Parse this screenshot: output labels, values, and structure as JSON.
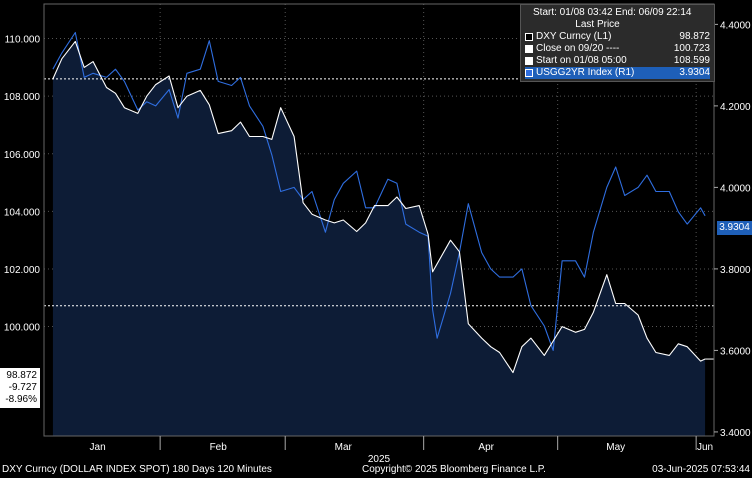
{
  "chart_data": {
    "type": "line",
    "title": "",
    "xlabel": "2025",
    "x_ticks": [
      "Jan",
      "Feb",
      "Mar",
      "Apr",
      "May",
      "Jun"
    ],
    "y_left": {
      "ticks": [
        "110.000",
        "108.000",
        "106.000",
        "104.000",
        "102.000",
        "100.000"
      ],
      "ylim": [
        96.2,
        111.2
      ]
    },
    "y_right": {
      "ticks": [
        "4.4000",
        "4.2000",
        "4.0000",
        "3.8000",
        "3.6000",
        "3.4000"
      ],
      "ylim": [
        3.39,
        4.45
      ]
    },
    "reference_lines": [
      {
        "name": "Close on 09/20",
        "value": 100.723,
        "axis": "left"
      },
      {
        "name": "Start on 01/08 05:00",
        "value": 108.599,
        "axis": "left"
      }
    ],
    "series": [
      {
        "name": "DXY Curncy (L1)",
        "axis": "left",
        "color": "#ffffff",
        "x": [
          "01/08",
          "01/10",
          "01/13",
          "01/15",
          "01/17",
          "01/20",
          "01/22",
          "01/24",
          "01/27",
          "01/29",
          "01/31",
          "02/03",
          "02/05",
          "02/07",
          "02/10",
          "02/12",
          "02/14",
          "02/17",
          "02/19",
          "02/21",
          "02/24",
          "02/26",
          "02/28",
          "03/03",
          "03/05",
          "03/07",
          "03/10",
          "03/12",
          "03/14",
          "03/17",
          "03/19",
          "03/21",
          "03/24",
          "03/26",
          "03/28",
          "03/31",
          "04/02",
          "04/03",
          "04/07",
          "04/09",
          "04/11",
          "04/14",
          "04/16",
          "04/18",
          "04/21",
          "04/23",
          "04/25",
          "04/28",
          "04/30",
          "05/02",
          "05/05",
          "05/07",
          "05/09",
          "05/12",
          "05/14",
          "05/16",
          "05/19",
          "05/21",
          "05/23",
          "05/26",
          "05/28",
          "05/30",
          "06/02",
          "06/03"
        ],
        "values": [
          108.6,
          109.3,
          109.9,
          109.0,
          109.2,
          108.3,
          108.1,
          107.6,
          107.4,
          108.0,
          108.4,
          108.7,
          107.6,
          108.0,
          108.2,
          107.7,
          106.7,
          106.8,
          107.1,
          106.6,
          106.6,
          106.5,
          107.6,
          106.6,
          104.3,
          103.9,
          103.7,
          103.6,
          103.7,
          103.3,
          103.6,
          104.2,
          104.2,
          104.5,
          104.1,
          104.2,
          103.2,
          101.9,
          103.0,
          102.6,
          100.1,
          99.6,
          99.3,
          99.1,
          98.4,
          99.3,
          99.6,
          99.0,
          99.5,
          100.0,
          99.8,
          99.9,
          100.5,
          101.8,
          100.8,
          100.8,
          100.4,
          99.6,
          99.1,
          99.0,
          99.4,
          99.3,
          98.8,
          98.872
        ]
      },
      {
        "name": "USGG2YR Index (R1)",
        "axis": "right",
        "color": "#2f6ee0",
        "x": [
          "01/08",
          "01/10",
          "01/13",
          "01/15",
          "01/17",
          "01/20",
          "01/22",
          "01/24",
          "01/27",
          "01/29",
          "01/31",
          "02/03",
          "02/05",
          "02/07",
          "02/10",
          "02/12",
          "02/14",
          "02/17",
          "02/19",
          "02/21",
          "02/24",
          "02/26",
          "02/28",
          "03/03",
          "03/05",
          "03/07",
          "03/10",
          "03/12",
          "03/14",
          "03/17",
          "03/19",
          "03/21",
          "03/24",
          "03/26",
          "03/28",
          "03/31",
          "04/02",
          "04/03",
          "04/04",
          "04/07",
          "04/09",
          "04/11",
          "04/14",
          "04/16",
          "04/18",
          "04/21",
          "04/23",
          "04/25",
          "04/28",
          "04/30",
          "05/02",
          "05/05",
          "05/07",
          "05/09",
          "05/12",
          "05/14",
          "05/16",
          "05/19",
          "05/21",
          "05/23",
          "05/26",
          "05/28",
          "05/30",
          "06/02",
          "06/03"
        ],
        "values": [
          4.29,
          4.33,
          4.38,
          4.27,
          4.28,
          4.27,
          4.29,
          4.26,
          4.19,
          4.21,
          4.2,
          4.24,
          4.17,
          4.28,
          4.29,
          4.36,
          4.26,
          4.25,
          4.27,
          4.2,
          4.15,
          4.08,
          3.99,
          4.0,
          3.97,
          3.99,
          3.89,
          3.97,
          4.01,
          4.04,
          3.95,
          3.95,
          4.02,
          4.01,
          3.91,
          3.89,
          3.88,
          3.7,
          3.63,
          3.74,
          3.84,
          3.96,
          3.84,
          3.8,
          3.78,
          3.78,
          3.8,
          3.71,
          3.66,
          3.6,
          3.82,
          3.82,
          3.78,
          3.89,
          4.0,
          4.05,
          3.98,
          4.0,
          4.03,
          3.99,
          3.99,
          3.94,
          3.91,
          3.95,
          3.9304
        ]
      }
    ],
    "legend": {
      "header": "Start: 01/08 03:42 End: 06/09 22:14",
      "subheader": "Last Price",
      "placement": "top-right",
      "rows": [
        {
          "label": "DXY Curncy  (L1)",
          "value": "98.872",
          "color": "#ffffff"
        },
        {
          "label": "Close on 09/20 ----",
          "value": "100.723",
          "color": "#ffffff"
        },
        {
          "label": "Start on 01/08 05:00",
          "value": "108.599",
          "color": "#ffffff"
        },
        {
          "label": "USGG2YR Index  (R1)",
          "value": "3.9304",
          "color": "#1e5fb8"
        }
      ]
    },
    "left_box": [
      "98.872",
      "-9.727",
      "-8.96%"
    ],
    "right_tag": "3.9304"
  },
  "footer": {
    "left": "DXY Curncy (DOLLAR INDEX SPOT) 180 Days 120 Minutes",
    "center": "Copyright© 2025 Bloomberg Finance L.P.",
    "right": "03-Jun-2025 07:53:44"
  }
}
